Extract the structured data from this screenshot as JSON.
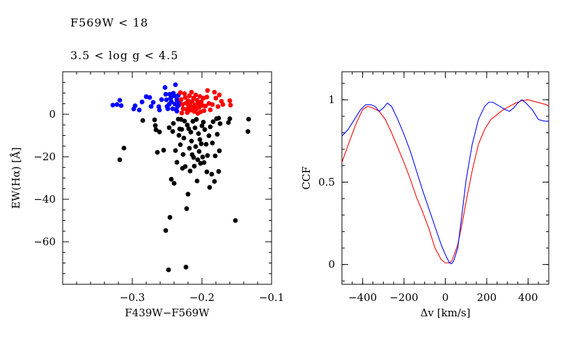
{
  "annotations": [
    "F569W < 18",
    "3.5 < log g < 4.5"
  ],
  "chart_data": [
    {
      "type": "scatter",
      "xlabel": "F439W−F569W",
      "ylabel": "EW(Hα) [Å]",
      "xlim": [
        -0.4,
        -0.1
      ],
      "ylim": [
        -80,
        20
      ],
      "xticks": [
        -0.3,
        -0.2,
        -0.1
      ],
      "xtick_labels": [
        "−0.3",
        "−0.2",
        "−0.1"
      ],
      "yticks": [
        0,
        -20,
        -40,
        -60
      ],
      "ytick_labels": [
        "0",
        "−20",
        "−40",
        "−60"
      ],
      "grid": false,
      "series": [
        {
          "color": "#0000ff",
          "points": [
            [
              -0.328,
              4.3
            ],
            [
              -0.322,
              4.6
            ],
            [
              -0.318,
              6.6
            ],
            [
              -0.316,
              4.1
            ],
            [
              -0.298,
              2.5
            ],
            [
              -0.296,
              4.0
            ],
            [
              -0.29,
              2.0
            ],
            [
              -0.286,
              5.8
            ],
            [
              -0.28,
              8.3
            ],
            [
              -0.275,
              7.9
            ],
            [
              -0.273,
              3.7
            ],
            [
              -0.27,
              5.6
            ],
            [
              -0.262,
              3.6
            ],
            [
              -0.258,
              6.9
            ],
            [
              -0.253,
              12.6
            ],
            [
              -0.252,
              9.4
            ],
            [
              -0.251,
              6.8
            ],
            [
              -0.25,
              3.7
            ],
            [
              -0.249,
              2.6
            ],
            [
              -0.247,
              4.7
            ],
            [
              -0.246,
              9.4
            ],
            [
              -0.245,
              7.5
            ],
            [
              -0.244,
              5.9
            ],
            [
              -0.242,
              2.6
            ],
            [
              -0.241,
              9.9
            ],
            [
              -0.24,
              8.7
            ],
            [
              -0.239,
              4.9
            ],
            [
              -0.238,
              13.9
            ],
            [
              -0.237,
              2.2
            ],
            [
              -0.236,
              6.9
            ],
            [
              -0.235,
              3.7
            ],
            [
              -0.234,
              8.9
            ],
            [
              -0.233,
              5.3
            ],
            [
              -0.236,
              1.5
            ],
            [
              -0.232,
              4.7
            ],
            [
              -0.261,
              2.0
            ]
          ]
        },
        {
          "color": "#ff0000",
          "points": [
            [
              -0.231,
              10.2
            ],
            [
              -0.23,
              6.9
            ],
            [
              -0.229,
              0.6
            ],
            [
              -0.228,
              4.7
            ],
            [
              -0.227,
              2.6
            ],
            [
              -0.225,
              9.7
            ],
            [
              -0.224,
              7.9
            ],
            [
              -0.223,
              5.2
            ],
            [
              -0.222,
              2.3
            ],
            [
              -0.221,
              0.8
            ],
            [
              -0.22,
              6.4
            ],
            [
              -0.219,
              3.7
            ],
            [
              -0.218,
              8.7
            ],
            [
              -0.217,
              4.9
            ],
            [
              -0.216,
              1.9
            ],
            [
              -0.215,
              10.4
            ],
            [
              -0.214,
              6.1
            ],
            [
              -0.213,
              3.3
            ],
            [
              -0.212,
              7.7
            ],
            [
              -0.211,
              1.3
            ],
            [
              -0.21,
              4.4
            ],
            [
              -0.209,
              9.1
            ],
            [
              -0.208,
              2.5
            ],
            [
              -0.207,
              6.6
            ],
            [
              -0.206,
              0.4
            ],
            [
              -0.205,
              5.1
            ],
            [
              -0.204,
              3.3
            ],
            [
              -0.203,
              8.4
            ],
            [
              -0.202,
              1.1
            ],
            [
              -0.201,
              5.9
            ],
            [
              -0.199,
              4.1
            ],
            [
              -0.198,
              7.6
            ],
            [
              -0.197,
              1.7
            ],
            [
              -0.195,
              3.9
            ],
            [
              -0.192,
              11.2
            ],
            [
              -0.19,
              5.1
            ],
            [
              -0.188,
              2.1
            ],
            [
              -0.185,
              4.6
            ],
            [
              -0.182,
              10.4
            ],
            [
              -0.18,
              7.6
            ],
            [
              -0.177,
              3.6
            ],
            [
              -0.175,
              9.1
            ],
            [
              -0.172,
              6.1
            ],
            [
              -0.17,
              4.6
            ],
            [
              -0.16,
              6.4
            ],
            [
              -0.159,
              4.3
            ],
            [
              -0.193,
              8.1
            ]
          ]
        },
        {
          "color": "#000000",
          "points": [
            [
              -0.318,
              -21.4
            ],
            [
              -0.312,
              -15.9
            ],
            [
              -0.285,
              -2.9
            ],
            [
              -0.268,
              -2.6
            ],
            [
              -0.267,
              -5.3
            ],
            [
              -0.266,
              -7.3
            ],
            [
              -0.264,
              -17.9
            ],
            [
              -0.261,
              -8.3
            ],
            [
              -0.255,
              -16.9
            ],
            [
              -0.252,
              -54.7
            ],
            [
              -0.248,
              -73.2
            ],
            [
              -0.247,
              -6.3
            ],
            [
              -0.246,
              -48.5
            ],
            [
              -0.244,
              -30.6
            ],
            [
              -0.242,
              -8.1
            ],
            [
              -0.241,
              -4.3
            ],
            [
              -0.24,
              -32.5
            ],
            [
              -0.238,
              -17.1
            ],
            [
              -0.236,
              -22.6
            ],
            [
              -0.234,
              -2.3
            ],
            [
              -0.233,
              -9.9
            ],
            [
              -0.232,
              -6.9
            ],
            [
              -0.231,
              -14.3
            ],
            [
              -0.23,
              -2.4
            ],
            [
              -0.229,
              -7.1
            ],
            [
              -0.228,
              -25.4
            ],
            [
              -0.227,
              -18.9
            ],
            [
              -0.226,
              -11.2
            ],
            [
              -0.225,
              -3.2
            ],
            [
              -0.224,
              -24.6
            ],
            [
              -0.223,
              -71.9
            ],
            [
              -0.222,
              -44.4
            ],
            [
              -0.221,
              -5.1
            ],
            [
              -0.22,
              -37.6
            ],
            [
              -0.219,
              -6.8
            ],
            [
              -0.218,
              -16.0
            ],
            [
              -0.217,
              -26.7
            ],
            [
              -0.216,
              -8.4
            ],
            [
              -0.215,
              -12.6
            ],
            [
              -0.214,
              -19.0
            ],
            [
              -0.213,
              -3.3
            ],
            [
              -0.212,
              -20.3
            ],
            [
              -0.211,
              -24.4
            ],
            [
              -0.21,
              -6.4
            ],
            [
              -0.209,
              -15.2
            ],
            [
              -0.208,
              -2.4
            ],
            [
              -0.207,
              -31.4
            ],
            [
              -0.206,
              -21.4
            ],
            [
              -0.205,
              -9.1
            ],
            [
              -0.204,
              -17.5
            ],
            [
              -0.203,
              -11.9
            ],
            [
              -0.202,
              -23.1
            ],
            [
              -0.201,
              -13.9
            ],
            [
              -0.2,
              -5.4
            ],
            [
              -0.199,
              -20.1
            ],
            [
              -0.198,
              -3.7
            ],
            [
              -0.197,
              -22.7
            ],
            [
              -0.196,
              -7.2
            ],
            [
              -0.194,
              -14.1
            ],
            [
              -0.193,
              -27.1
            ],
            [
              -0.192,
              -19.4
            ],
            [
              -0.19,
              -10.1
            ],
            [
              -0.189,
              -34.4
            ],
            [
              -0.188,
              -5.9
            ],
            [
              -0.186,
              -28.2
            ],
            [
              -0.185,
              -13.5
            ],
            [
              -0.184,
              -3.5
            ],
            [
              -0.182,
              -31.6
            ],
            [
              -0.181,
              -19.6
            ],
            [
              -0.179,
              -2.1
            ],
            [
              -0.178,
              -9.4
            ],
            [
              -0.176,
              -26.9
            ],
            [
              -0.175,
              -17.2
            ],
            [
              -0.174,
              -4.4
            ],
            [
              -0.162,
              -3.9
            ],
            [
              -0.16,
              -2.1
            ],
            [
              -0.152,
              -50.0
            ],
            [
              -0.134,
              -8.1
            ],
            [
              -0.133,
              -2.3
            ],
            [
              -0.176,
              -1.8
            ]
          ]
        }
      ]
    },
    {
      "type": "line",
      "xlabel": "Δv [km/s]",
      "ylabel": "CCF",
      "xlim": [
        -500,
        500
      ],
      "ylim": [
        -0.12,
        1.17
      ],
      "xticks": [
        -400,
        -200,
        0,
        200,
        400
      ],
      "xtick_labels": [
        "−400",
        "−200",
        "0",
        "200",
        "400"
      ],
      "yticks": [
        0,
        0.5,
        1
      ],
      "ytick_labels": [
        "0",
        "0.5",
        "1"
      ],
      "grid": false,
      "series": [
        {
          "color": "#ff0000",
          "x": [
            -500,
            -460,
            -430,
            -400,
            -375,
            -350,
            -320,
            -290,
            -260,
            -230,
            -200,
            -170,
            -140,
            -110,
            -80,
            -50,
            -20,
            0,
            10,
            20,
            30,
            40,
            60,
            80,
            100,
            130,
            160,
            190,
            220,
            250,
            280,
            310,
            340,
            370,
            400,
            430,
            460,
            490,
            500
          ],
          "y": [
            0.62,
            0.76,
            0.86,
            0.94,
            0.96,
            0.95,
            0.93,
            0.88,
            0.8,
            0.71,
            0.62,
            0.52,
            0.41,
            0.32,
            0.22,
            0.1,
            0.03,
            0.01,
            0.01,
            0.01,
            0.02,
            0.05,
            0.12,
            0.24,
            0.38,
            0.57,
            0.73,
            0.82,
            0.88,
            0.91,
            0.94,
            0.96,
            0.98,
            0.995,
            1.0,
            0.99,
            0.98,
            0.97,
            0.96
          ]
        },
        {
          "color": "#0000ff",
          "x": [
            -500,
            -470,
            -440,
            -410,
            -385,
            -360,
            -340,
            -320,
            -300,
            -280,
            -260,
            -230,
            -200,
            -170,
            -140,
            -110,
            -80,
            -50,
            -20,
            0,
            20,
            30,
            40,
            60,
            80,
            100,
            130,
            160,
            190,
            210,
            230,
            250,
            270,
            290,
            310,
            330,
            350,
            370,
            390,
            420,
            450,
            480,
            500
          ],
          "y": [
            0.78,
            0.82,
            0.88,
            0.94,
            0.97,
            0.97,
            0.96,
            0.93,
            0.95,
            0.98,
            0.96,
            0.88,
            0.79,
            0.69,
            0.57,
            0.45,
            0.34,
            0.23,
            0.12,
            0.06,
            0.01,
            0.005,
            0.02,
            0.1,
            0.3,
            0.51,
            0.73,
            0.88,
            0.96,
            0.985,
            0.985,
            0.97,
            0.955,
            0.94,
            0.93,
            0.95,
            0.98,
            1.0,
            0.98,
            0.94,
            0.88,
            0.87,
            0.87
          ]
        }
      ]
    }
  ]
}
